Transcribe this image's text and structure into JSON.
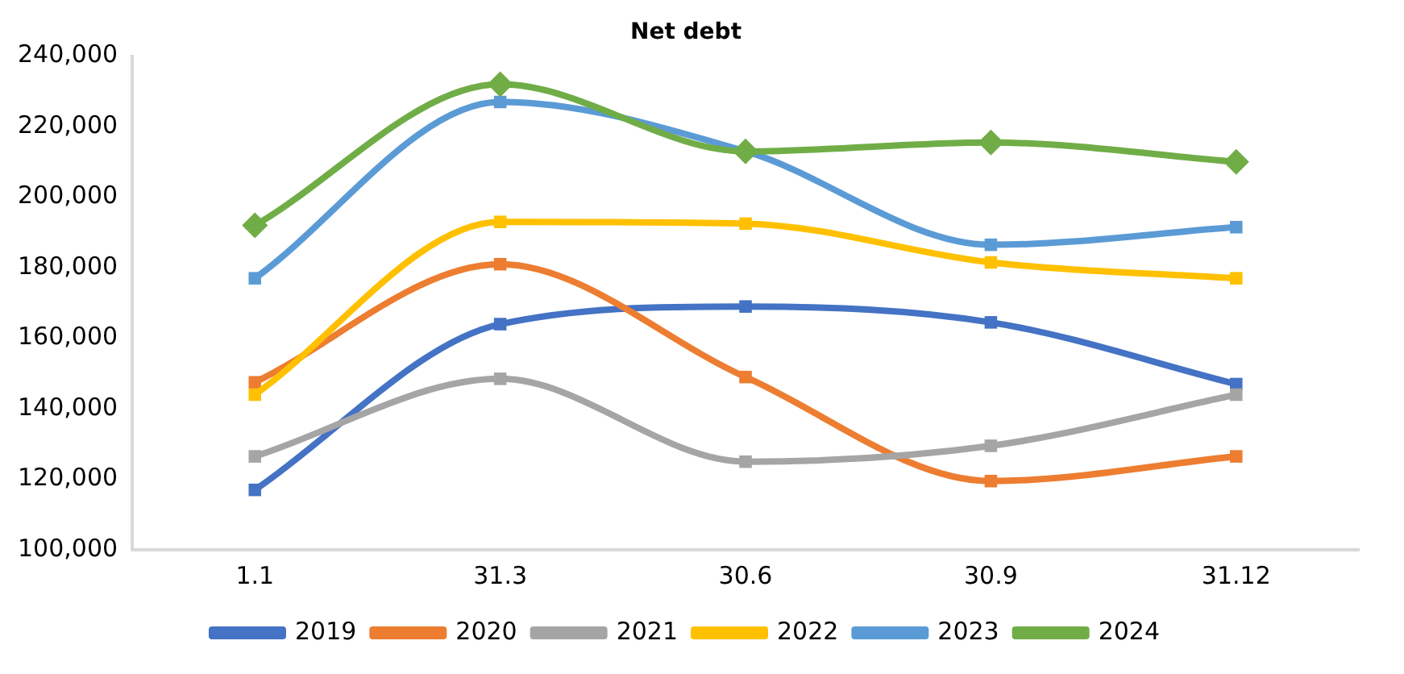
{
  "chart_data": {
    "type": "line",
    "title": "Net debt",
    "categories": [
      "1.1",
      "31.3",
      "30.6",
      "30.9",
      "31.12"
    ],
    "series": [
      {
        "name": "2019",
        "color": "#4472c4",
        "marker": "square",
        "values": [
          117000,
          164000,
          169000,
          164500,
          147000
        ]
      },
      {
        "name": "2020",
        "color": "#ed7d31",
        "marker": "square",
        "values": [
          147500,
          181000,
          149000,
          119500,
          126500
        ]
      },
      {
        "name": "2021",
        "color": "#a5a5a5",
        "marker": "square",
        "values": [
          126500,
          148500,
          125000,
          129500,
          144000
        ]
      },
      {
        "name": "2022",
        "color": "#ffc000",
        "marker": "square",
        "values": [
          144000,
          193000,
          192500,
          181500,
          177000
        ]
      },
      {
        "name": "2023",
        "color": "#5b9bd5",
        "marker": "square",
        "values": [
          177000,
          227000,
          213000,
          186500,
          191500
        ]
      },
      {
        "name": "2024",
        "color": "#70ad47",
        "marker": "diamond",
        "values": [
          192000,
          232000,
          213000,
          215500,
          210000
        ]
      }
    ],
    "ylim": [
      100000,
      240000
    ],
    "yticks": [
      {
        "value": 100000,
        "label": "100,000"
      },
      {
        "value": 120000,
        "label": "120,000"
      },
      {
        "value": 140000,
        "label": "140,000"
      },
      {
        "value": 160000,
        "label": "160,000"
      },
      {
        "value": 180000,
        "label": "180,000"
      },
      {
        "value": 200000,
        "label": "200,000"
      },
      {
        "value": 220000,
        "label": "220,000"
      },
      {
        "value": 240000,
        "label": "240,000"
      }
    ],
    "grid": false,
    "legend": "bottom",
    "line_style": "solid"
  }
}
